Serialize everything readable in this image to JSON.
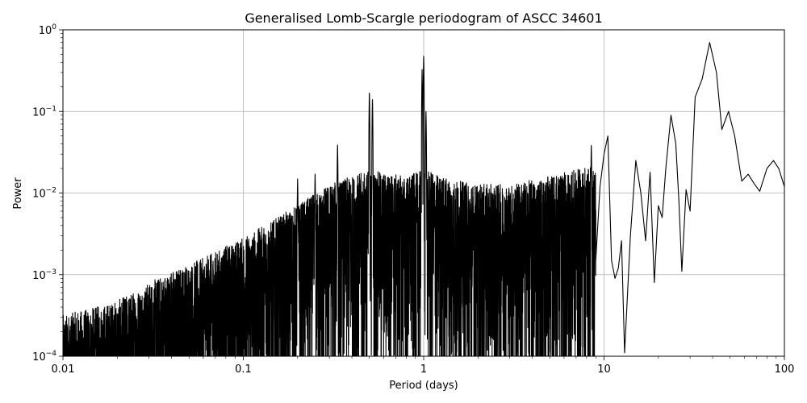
{
  "chart_data": {
    "type": "line",
    "title": "Generalised Lomb-Scargle periodogram of ASCC 34601",
    "xlabel": "Period (days)",
    "ylabel": "Power",
    "xscale": "log",
    "yscale": "log",
    "xlim": [
      0.01,
      100
    ],
    "ylim": [
      0.0001,
      1
    ],
    "grid": true,
    "line_color": "#000000",
    "x_ticks": [
      {
        "value": 0.01,
        "label": "0.01"
      },
      {
        "value": 0.1,
        "label": "0.1"
      },
      {
        "value": 1,
        "label": "1"
      },
      {
        "value": 10,
        "label": "10"
      },
      {
        "value": 100,
        "label": "100"
      }
    ],
    "y_ticks": [
      {
        "value": 0.0001,
        "base": "10",
        "exp": "−4"
      },
      {
        "value": 0.001,
        "base": "10",
        "exp": "−3"
      },
      {
        "value": 0.01,
        "base": "10",
        "exp": "−2"
      },
      {
        "value": 0.1,
        "base": "10",
        "exp": "−1"
      },
      {
        "value": 1,
        "base": "10",
        "exp": "0"
      }
    ],
    "series": [
      {
        "envelope": [
          {
            "period": 0.01,
            "power": 0.0002
          },
          {
            "period": 0.015,
            "power": 0.00025
          },
          {
            "period": 0.02,
            "power": 0.0003
          },
          {
            "period": 0.03,
            "power": 0.0005
          },
          {
            "period": 0.04,
            "power": 0.0007
          },
          {
            "period": 0.06,
            "power": 0.001
          },
          {
            "period": 0.08,
            "power": 0.0014
          },
          {
            "period": 0.1,
            "power": 0.0018
          },
          {
            "period": 0.15,
            "power": 0.003
          },
          {
            "period": 0.2,
            "power": 0.0045
          },
          {
            "period": 0.3,
            "power": 0.008
          },
          {
            "period": 0.5,
            "power": 0.012
          },
          {
            "period": 0.8,
            "power": 0.01
          },
          {
            "period": 1.0,
            "power": 0.012
          },
          {
            "period": 1.5,
            "power": 0.009
          },
          {
            "period": 2,
            "power": 0.008
          },
          {
            "period": 3,
            "power": 0.008
          },
          {
            "period": 5,
            "power": 0.01
          },
          {
            "period": 8,
            "power": 0.013
          }
        ],
        "peaks": [
          {
            "period": 0.2,
            "power": 0.015
          },
          {
            "period": 0.25,
            "power": 0.018
          },
          {
            "period": 0.333,
            "power": 0.04
          },
          {
            "period": 0.5,
            "power": 0.18
          },
          {
            "period": 0.52,
            "power": 0.15
          },
          {
            "period": 0.98,
            "power": 0.33
          },
          {
            "period": 1.0,
            "power": 0.5
          },
          {
            "period": 1.03,
            "power": 0.1
          },
          {
            "period": 8.5,
            "power": 0.04
          },
          {
            "period": 10.5,
            "power": 0.05
          }
        ],
        "smooth_tail": [
          {
            "period": 9.0,
            "power": 0.0015
          },
          {
            "period": 9.5,
            "power": 0.012
          },
          {
            "period": 10.0,
            "power": 0.03
          },
          {
            "period": 10.5,
            "power": 0.05
          },
          {
            "period": 11.0,
            "power": 0.0015
          },
          {
            "period": 11.5,
            "power": 0.0009
          },
          {
            "period": 12.0,
            "power": 0.0012
          },
          {
            "period": 12.5,
            "power": 0.0026
          },
          {
            "period": 13.0,
            "power": 0.00011
          },
          {
            "period": 14.0,
            "power": 0.003
          },
          {
            "period": 15.0,
            "power": 0.025
          },
          {
            "period": 16.0,
            "power": 0.01
          },
          {
            "period": 17.0,
            "power": 0.0026
          },
          {
            "period": 18.0,
            "power": 0.018
          },
          {
            "period": 19.0,
            "power": 0.0008
          },
          {
            "period": 20.0,
            "power": 0.007
          },
          {
            "period": 21.0,
            "power": 0.005
          },
          {
            "period": 22.0,
            "power": 0.02
          },
          {
            "period": 23.5,
            "power": 0.09
          },
          {
            "period": 25.0,
            "power": 0.04
          },
          {
            "period": 26.0,
            "power": 0.008
          },
          {
            "period": 27.0,
            "power": 0.0011
          },
          {
            "period": 28.5,
            "power": 0.011
          },
          {
            "period": 30.0,
            "power": 0.006
          },
          {
            "period": 32.0,
            "power": 0.15
          },
          {
            "period": 35.0,
            "power": 0.25
          },
          {
            "period": 38.5,
            "power": 0.7
          },
          {
            "period": 42.0,
            "power": 0.3
          },
          {
            "period": 45.0,
            "power": 0.06
          },
          {
            "period": 49.0,
            "power": 0.1
          },
          {
            "period": 53.0,
            "power": 0.05
          },
          {
            "period": 58.0,
            "power": 0.014
          },
          {
            "period": 63.0,
            "power": 0.017
          },
          {
            "period": 68.0,
            "power": 0.013
          },
          {
            "period": 73.0,
            "power": 0.0105
          },
          {
            "period": 80.0,
            "power": 0.02
          },
          {
            "period": 87.0,
            "power": 0.025
          },
          {
            "period": 93.0,
            "power": 0.02
          },
          {
            "period": 100.0,
            "power": 0.012
          }
        ]
      }
    ]
  }
}
